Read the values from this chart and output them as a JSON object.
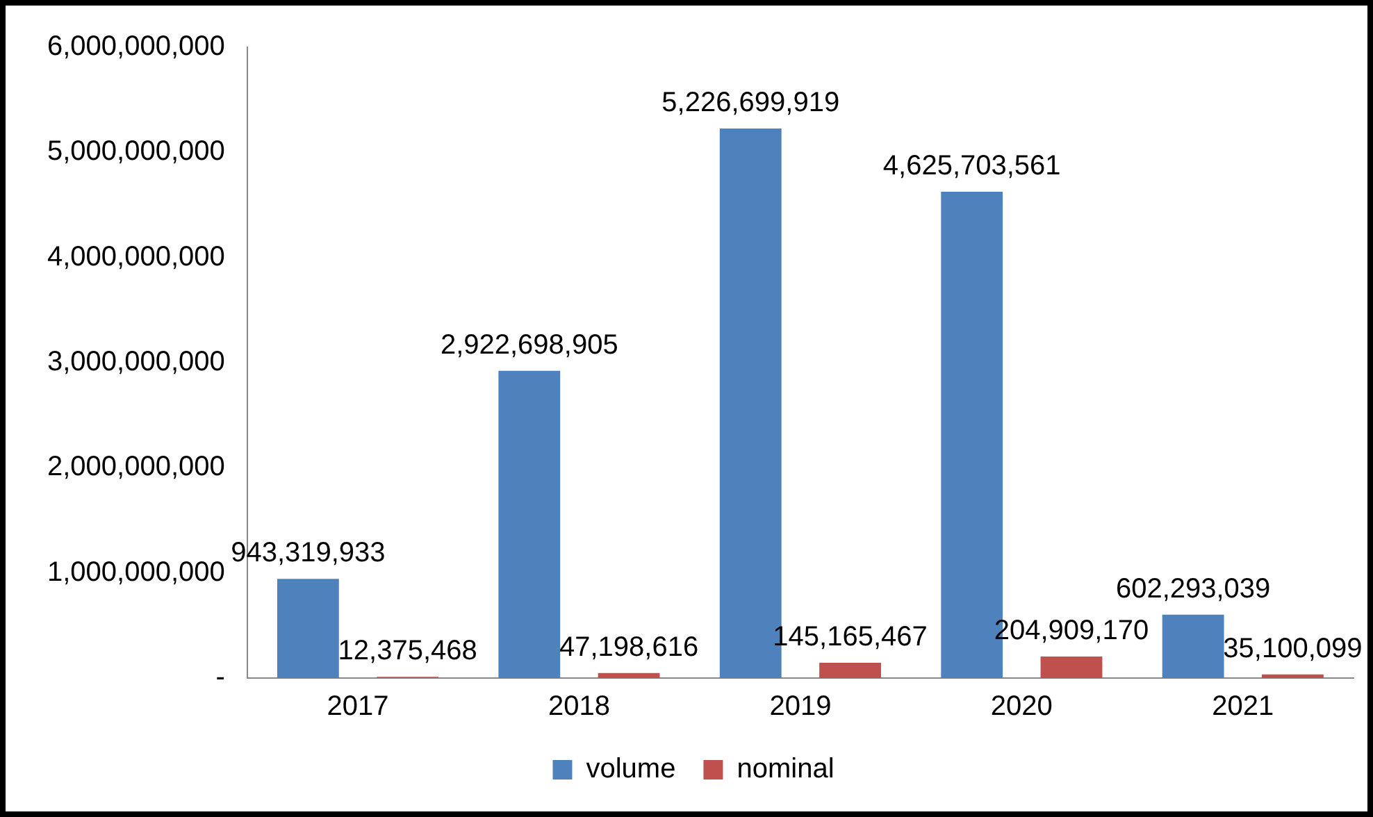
{
  "chart_data": {
    "type": "bar",
    "categories": [
      "2017",
      "2018",
      "2019",
      "2020",
      "2021"
    ],
    "series": [
      {
        "name": "volume",
        "color": "#4f81bd",
        "values": [
          943319933,
          2922698905,
          5226699919,
          4625703561,
          602293039
        ],
        "value_labels": [
          "943,319,933",
          "2,922,698,905",
          "5,226,699,919",
          "4,625,703,561",
          "602,293,039"
        ]
      },
      {
        "name": "nominal",
        "color": "#c0504d",
        "values": [
          12375468,
          47198616,
          145165467,
          204909170,
          35100099
        ],
        "value_labels": [
          "12,375,468",
          "47,198,616",
          "145,165,467",
          "204,909,170",
          "35,100,099"
        ]
      }
    ],
    "ylim": [
      0,
      6000000000
    ],
    "yticks": [
      {
        "value": 0,
        "label": "-"
      },
      {
        "value": 1000000000,
        "label": "1,000,000,000"
      },
      {
        "value": 2000000000,
        "label": "2,000,000,000"
      },
      {
        "value": 3000000000,
        "label": "3,000,000,000"
      },
      {
        "value": 4000000000,
        "label": "4,000,000,000"
      },
      {
        "value": 5000000000,
        "label": "5,000,000,000"
      },
      {
        "value": 6000000000,
        "label": "6,000,000,000"
      }
    ],
    "grid": false,
    "legend": "bottom"
  }
}
